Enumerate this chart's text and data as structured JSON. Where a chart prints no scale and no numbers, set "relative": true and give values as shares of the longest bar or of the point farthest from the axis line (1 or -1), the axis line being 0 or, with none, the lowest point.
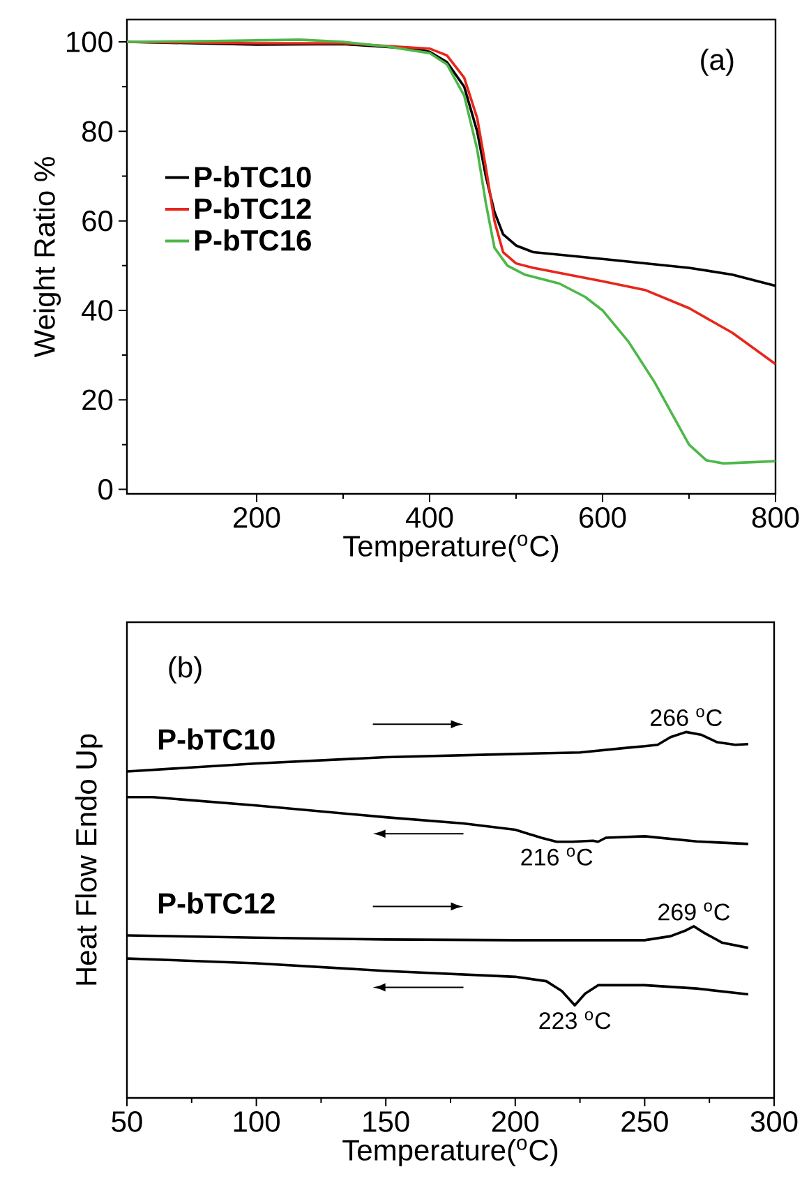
{
  "chart_data": [
    {
      "type": "line",
      "xlabel": "Temperature($^{o}$C)",
      "ylabel": "Weight Ratio %",
      "xlim": [
        50,
        800
      ],
      "ylim": [
        -1,
        105
      ],
      "xticks": [
        200,
        400,
        600,
        800
      ],
      "yticks": [
        0,
        20,
        40,
        60,
        80,
        100
      ],
      "legend": "left",
      "annotations": [
        "(a)"
      ],
      "series": [
        {
          "name": "P-bTC10",
          "color": "#000000",
          "x": [
            50,
            150,
            200,
            300,
            380,
            400,
            420,
            440,
            455,
            465,
            475,
            485,
            500,
            520,
            600,
            700,
            750,
            800
          ],
          "values": [
            100,
            null,
            99.4,
            99.5,
            98.5,
            97.8,
            95.5,
            90,
            80,
            70,
            62,
            57,
            54.5,
            53,
            51.5,
            49.5,
            48,
            45.5
          ]
        },
        {
          "name": "P-bTC12",
          "color": "#e8261c",
          "x": [
            50,
            200,
            300,
            400,
            420,
            440,
            455,
            465,
            475,
            485,
            500,
            520,
            600,
            650,
            700,
            750,
            800
          ],
          "values": [
            100,
            99.7,
            99.7,
            98.5,
            97,
            92,
            83,
            72,
            60,
            53,
            50.5,
            49.5,
            46.5,
            44.5,
            40.5,
            35,
            28
          ]
        },
        {
          "name": "P-bTC16",
          "color": "#4cb848",
          "x": [
            50,
            150,
            250,
            300,
            350,
            400,
            420,
            440,
            455,
            465,
            475,
            490,
            510,
            550,
            580,
            600,
            630,
            660,
            680,
            700,
            720,
            740,
            800
          ],
          "values": [
            100,
            100.2,
            100.5,
            100,
            99,
            97.5,
            95,
            88,
            76,
            64,
            54,
            50,
            48,
            46,
            43,
            40,
            33,
            24,
            17,
            10,
            6.5,
            5.8,
            6.3
          ]
        }
      ]
    },
    {
      "type": "line",
      "relative": true,
      "xlabel": "Temperature($^{o}$C)",
      "ylabel": "Heat Flow Endo Up",
      "xlim": [
        50,
        300
      ],
      "xticks": [
        50,
        100,
        150,
        200,
        250,
        300
      ],
      "tick_labels": "x",
      "annotations": [
        "(b)",
        {
          "text": "266 $^{o}$C",
          "x": 266,
          "y": 1
        },
        {
          "text": "216 $^{o}$C",
          "x": 216,
          "y": 0.7
        },
        {
          "text": "269 $^{o}$C",
          "x": 269,
          "y": 0.469
        },
        {
          "text": "223 $^{o}$C",
          "x": 223,
          "y": 0.253
        }
      ],
      "series": [
        {
          "name": "P-bTC10",
          "color": "#000000",
          "x": [
            50,
            100,
            150,
            200,
            225,
            245,
            250,
            255,
            260,
            266,
            272,
            278,
            285,
            290
          ],
          "values": [
            0.892,
            0.914,
            0.931,
            0.94,
            0.944,
            0.958,
            0.961,
            0.965,
            0.986,
            1,
            0.992,
            0.972,
            0.965,
            0.967
          ]
        },
        {
          "color": "#000000",
          "x": [
            50,
            60,
            100,
            150,
            180,
            200,
            210,
            216,
            222,
            230,
            232,
            235,
            250,
            270,
            290
          ],
          "values": [
            0.822,
            0.822,
            0.799,
            0.767,
            0.75,
            0.733,
            0.711,
            0.7,
            0.7,
            0.703,
            0.7,
            0.711,
            0.715,
            0.701,
            0.694
          ]
        },
        {
          "name": "P-bTC12",
          "color": "#000000",
          "x": [
            50,
            100,
            150,
            200,
            250,
            260,
            266,
            269,
            273,
            280,
            290
          ],
          "values": [
            0.444,
            0.438,
            0.433,
            0.431,
            0.431,
            0.442,
            0.458,
            0.469,
            0.451,
            0.424,
            0.41
          ]
        },
        {
          "color": "#000000",
          "x": [
            50,
            100,
            150,
            200,
            212,
            218,
            223,
            227,
            232,
            250,
            270,
            290
          ],
          "values": [
            0.381,
            0.368,
            0.347,
            0.331,
            0.319,
            0.292,
            0.253,
            0.285,
            0.308,
            0.308,
            0.299,
            0.283
          ]
        }
      ]
    }
  ]
}
